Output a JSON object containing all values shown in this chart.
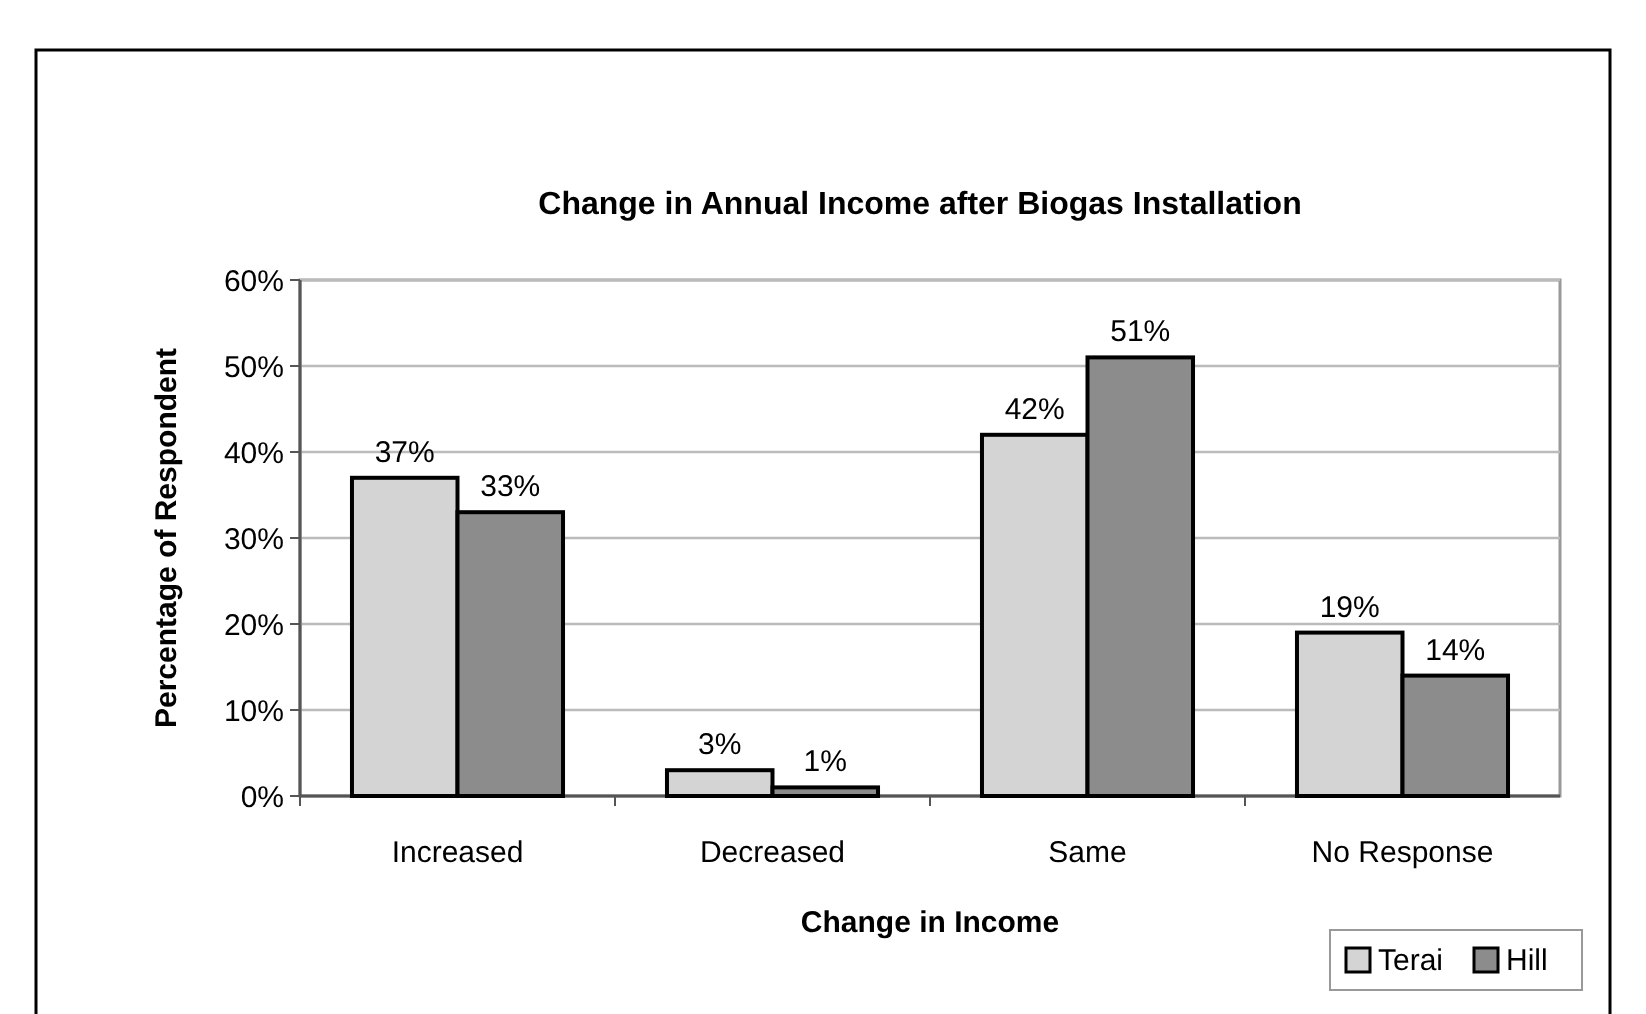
{
  "chart_data": {
    "type": "bar",
    "title": "Change in Annual Income after Biogas Installation",
    "xlabel": "Change in Income",
    "ylabel": "Percentage of Respondent",
    "categories": [
      "Increased",
      "Decreased",
      "Same",
      "No Response"
    ],
    "series": [
      {
        "name": "Terai",
        "color": "#d4d4d4",
        "values": [
          37,
          3,
          42,
          19
        ],
        "value_labels": [
          "37%",
          "3%",
          "42%",
          "19%"
        ]
      },
      {
        "name": "Hill",
        "color": "#8c8c8c",
        "values": [
          33,
          1,
          51,
          14
        ],
        "value_labels": [
          "33%",
          "1%",
          "51%",
          "14%"
        ]
      }
    ],
    "ylim": [
      0,
      60
    ],
    "yticks": [
      {
        "value": 0,
        "label": "0%"
      },
      {
        "value": 10,
        "label": "10%"
      },
      {
        "value": 20,
        "label": "20%"
      },
      {
        "value": 30,
        "label": "30%"
      },
      {
        "value": 40,
        "label": "40%"
      },
      {
        "value": 50,
        "label": "50%"
      },
      {
        "value": 60,
        "label": "60%"
      }
    ],
    "grid": "y",
    "legend": "bottom right"
  }
}
